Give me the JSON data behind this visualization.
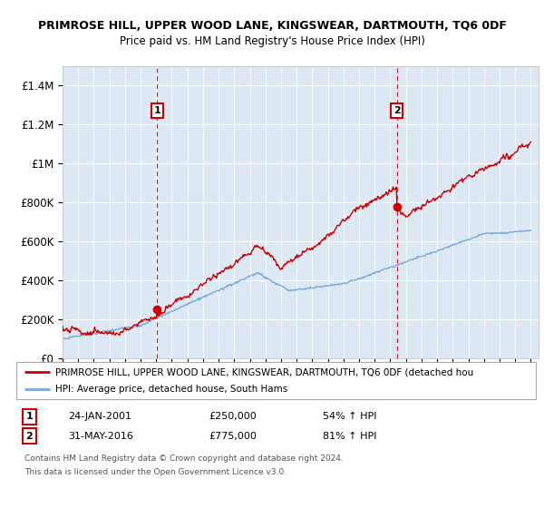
{
  "title": "PRIMROSE HILL, UPPER WOOD LANE, KINGSWEAR, DARTMOUTH, TQ6 0DF",
  "subtitle": "Price paid vs. HM Land Registry's House Price Index (HPI)",
  "background_color": "#ffffff",
  "plot_bg_color": "#dce9f5",
  "ylim": [
    0,
    1500000
  ],
  "yticks": [
    0,
    200000,
    400000,
    600000,
    800000,
    1000000,
    1200000,
    1400000
  ],
  "ytick_labels": [
    "£0",
    "£200K",
    "£400K",
    "£600K",
    "£800K",
    "£1M",
    "£1.2M",
    "£1.4M"
  ],
  "x_start_year": 1995,
  "x_end_year": 2025,
  "sale1_year": 2001.07,
  "sale1_price": 250000,
  "sale1_label": "1",
  "sale1_date": "24-JAN-2001",
  "sale1_hpi_pct": "54% ↑ HPI",
  "sale2_year": 2016.42,
  "sale2_price": 775000,
  "sale2_label": "2",
  "sale2_date": "31-MAY-2016",
  "sale2_hpi_pct": "81% ↑ HPI",
  "red_line_color": "#cc0000",
  "blue_line_color": "#7aaadd",
  "legend_label_red": "PRIMROSE HILL, UPPER WOOD LANE, KINGSWEAR, DARTMOUTH, TQ6 0DF (detached hou",
  "legend_label_blue": "HPI: Average price, detached house, South Hams",
  "footer1": "Contains HM Land Registry data © Crown copyright and database right 2024.",
  "footer2": "This data is licensed under the Open Government Licence v3.0.",
  "sale1_price_str": "£250,000",
  "sale2_price_str": "£775,000"
}
